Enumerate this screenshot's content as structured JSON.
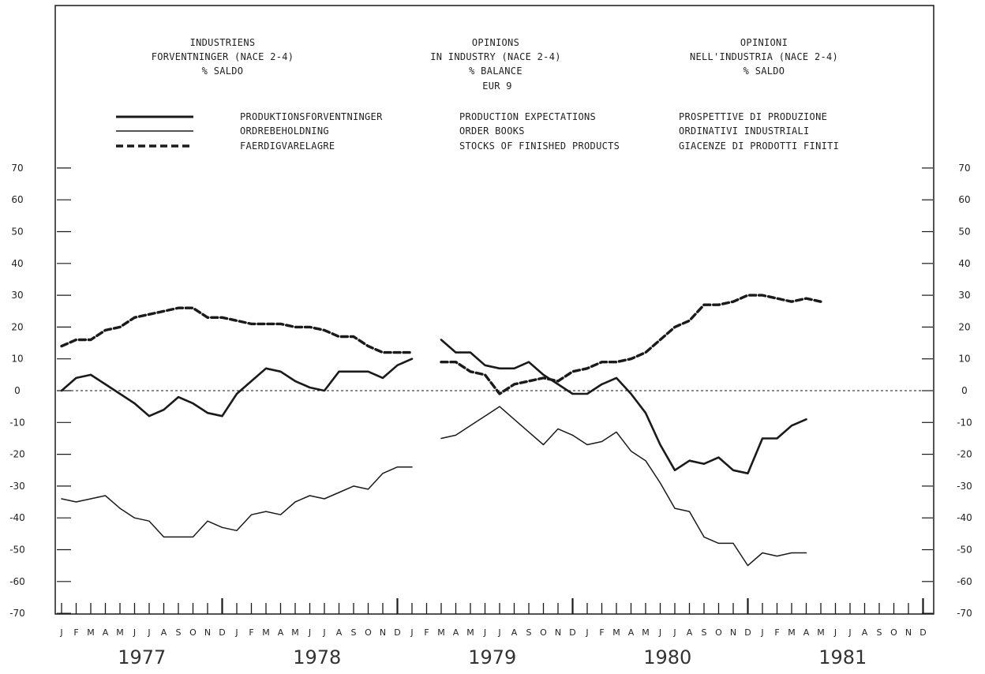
{
  "header": {
    "danish": [
      "INDUSTRIENS",
      "FORVENTNINGER (NACE 2-4)",
      "% SALDO"
    ],
    "english": [
      "OPINIONS",
      "IN INDUSTRY (NACE 2-4)",
      "% BALANCE",
      "EUR 9"
    ],
    "italian": [
      "OPINIONI",
      "NELL'INDUSTRIA (NACE 2-4)",
      "% SALDO"
    ]
  },
  "legend": [
    {
      "danish": "PRODUKTIONSFORVENTNINGER",
      "english": "PRODUCTION EXPECTATIONS",
      "italian": "PROSPETTIVE DI PRODUZIONE",
      "style": "thick"
    },
    {
      "danish": "ORDREBEHOLDNING",
      "english": "ORDER BOOKS",
      "italian": "ORDINATIVI INDUSTRIALI",
      "style": "thin"
    },
    {
      "danish": "FAERDIGVARELAGRE",
      "english": "STOCKS OF FINISHED PRODUCTS",
      "italian": "GIACENZE DI PRODOTTI FINITI",
      "style": "dashed"
    }
  ],
  "chart_data": {
    "type": "line",
    "title": "",
    "xlabel": "",
    "ylabel": "",
    "ylim": [
      -70,
      70
    ],
    "yticks": [
      70,
      60,
      50,
      40,
      30,
      20,
      10,
      0,
      -10,
      -20,
      -30,
      -40,
      -50,
      -60,
      -70
    ],
    "month_letters": [
      "J",
      "F",
      "M",
      "A",
      "M",
      "J",
      "J",
      "A",
      "S",
      "O",
      "N",
      "D"
    ],
    "years": [
      "1977",
      "1978",
      "1979",
      "1980",
      "1981"
    ],
    "grid": false,
    "zero_line": "dotted",
    "colors": {
      "ink": "#1a1a1a"
    },
    "series": [
      {
        "name": "PRODUCTION EXPECTATIONS",
        "style": "thick",
        "segments": [
          {
            "start": "1977-01",
            "values": [
              0,
              4,
              5,
              2,
              -1,
              -4,
              -8,
              -6,
              -2,
              -4,
              -7,
              -8,
              -1,
              3,
              7,
              6,
              3,
              1,
              0,
              6,
              6,
              6,
              4,
              8,
              10
            ]
          },
          {
            "start": "1979-03",
            "values": [
              16,
              12,
              12,
              8,
              7,
              7,
              9,
              5,
              2,
              -1,
              -1,
              2,
              4,
              -1,
              -7,
              -17,
              -25,
              -22,
              -23,
              -21,
              -25,
              -26,
              -15,
              -15,
              -11,
              -9
            ]
          }
        ]
      },
      {
        "name": "ORDER BOOKS",
        "style": "thin",
        "segments": [
          {
            "start": "1977-01",
            "values": [
              -34,
              -35,
              -34,
              -33,
              -37,
              -40,
              -41,
              -46,
              -46,
              -46,
              -41,
              -43,
              -44,
              -39,
              -38,
              -39,
              -35,
              -33,
              -34,
              -32,
              -30,
              -31,
              -26,
              -24,
              -24
            ]
          },
          {
            "start": "1979-03",
            "values": [
              -15,
              -14,
              -11,
              -8,
              -5,
              -9,
              -13,
              -17,
              -12,
              -14,
              -17,
              -16,
              -13,
              -19,
              -22,
              -29,
              -37,
              -38,
              -46,
              -48,
              -48,
              -55,
              -51,
              -52,
              -51,
              -51
            ]
          }
        ]
      },
      {
        "name": "STOCKS OF FINISHED PRODUCTS",
        "style": "dashed",
        "segments": [
          {
            "start": "1977-01",
            "values": [
              14,
              16,
              16,
              19,
              20,
              23,
              24,
              25,
              26,
              26,
              23,
              23,
              22,
              21,
              21,
              21,
              20,
              20,
              19,
              17,
              17,
              14,
              12,
              12,
              12
            ]
          },
          {
            "start": "1979-03",
            "values": [
              9,
              9,
              6,
              5,
              -1,
              2,
              3,
              4,
              3,
              6,
              7,
              9,
              9,
              10,
              12,
              16,
              20,
              22,
              27,
              27,
              28,
              30,
              30,
              29,
              28,
              29,
              28
            ]
          }
        ]
      }
    ]
  }
}
